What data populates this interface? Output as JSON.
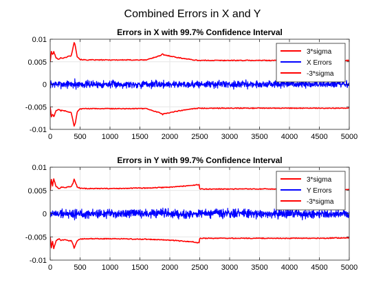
{
  "figure": {
    "title": "Combined Errors in X and Y"
  },
  "colors": {
    "sigma": "#ff0000",
    "errors": "#0000ff",
    "grid": "#e6e6e6",
    "axis": "#262626"
  },
  "chart_data": [
    {
      "type": "line",
      "title": "Errors in X with 99.7% Confidence Interval",
      "xlabel": "",
      "ylabel": "",
      "xlim": [
        0,
        5000
      ],
      "ylim": [
        -0.01,
        0.01
      ],
      "xticks": [
        "0",
        "500",
        "1000",
        "1500",
        "2000",
        "2500",
        "3000",
        "3500",
        "4000",
        "4500",
        "5000"
      ],
      "yticks": [
        "-0.01",
        "-0.005",
        "0",
        "0.005",
        "0.01"
      ],
      "grid": true,
      "legend_position": "top-right",
      "series": [
        {
          "name": "3*sigma",
          "color": "#ff0000",
          "kind": "upper",
          "x": [
            0,
            20,
            40,
            60,
            100,
            150,
            180,
            200,
            250,
            300,
            350,
            380,
            400,
            420,
            450,
            500,
            600,
            800,
            1000,
            1200,
            1400,
            1600,
            1700,
            1750,
            1800,
            1850,
            1880,
            1900,
            2000,
            2100,
            2200,
            2300,
            2400,
            2500,
            2600,
            3000,
            3500,
            4000,
            4500,
            5000
          ],
          "values": [
            0.005,
            0.0072,
            0.0066,
            0.0072,
            0.0058,
            0.0056,
            0.0059,
            0.0058,
            0.0059,
            0.0062,
            0.0063,
            0.008,
            0.0093,
            0.0086,
            0.0062,
            0.0055,
            0.0054,
            0.0054,
            0.0054,
            0.0054,
            0.0054,
            0.0054,
            0.0058,
            0.006,
            0.0062,
            0.0064,
            0.0067,
            0.0065,
            0.0063,
            0.006,
            0.0058,
            0.0056,
            0.0054,
            0.0053,
            0.0053,
            0.0053,
            0.0053,
            0.0053,
            0.0053,
            0.0053
          ]
        },
        {
          "name": "X Errors",
          "color": "#0000ff",
          "kind": "errors",
          "amplitude": 0.0012,
          "seed": 7
        },
        {
          "name": "-3*sigma",
          "color": "#ff0000",
          "kind": "lower",
          "mirror_of": 0
        }
      ]
    },
    {
      "type": "line",
      "title": "Errors in Y with 99.7% Confidence Interval",
      "xlabel": "",
      "ylabel": "",
      "xlim": [
        0,
        5000
      ],
      "ylim": [
        -0.01,
        0.01
      ],
      "xticks": [
        "0",
        "500",
        "1000",
        "1500",
        "2000",
        "2500",
        "3000",
        "3500",
        "4000",
        "4500",
        "5000"
      ],
      "yticks": [
        "-0.01",
        "-0.005",
        "0",
        "0.005",
        "0.01"
      ],
      "grid": true,
      "legend_position": "top-right",
      "series": [
        {
          "name": "3*sigma",
          "color": "#ff0000",
          "kind": "upper",
          "x": [
            0,
            20,
            40,
            60,
            100,
            150,
            180,
            200,
            250,
            300,
            350,
            380,
            400,
            420,
            450,
            500,
            600,
            800,
            1000,
            1200,
            1400,
            1600,
            1800,
            2000,
            2200,
            2400,
            2490,
            2500,
            2600,
            3000,
            3500,
            4000,
            4500,
            5000
          ],
          "values": [
            0.005,
            0.0073,
            0.006,
            0.0075,
            0.0058,
            0.0054,
            0.0057,
            0.0057,
            0.0056,
            0.0058,
            0.0058,
            0.0065,
            0.0074,
            0.0068,
            0.0058,
            0.0055,
            0.0054,
            0.0054,
            0.0054,
            0.0054,
            0.0055,
            0.0055,
            0.0056,
            0.0057,
            0.0059,
            0.0061,
            0.0063,
            0.0053,
            0.0053,
            0.0053,
            0.0053,
            0.0053,
            0.0053,
            0.0052
          ]
        },
        {
          "name": "Y Errors",
          "color": "#0000ff",
          "kind": "errors",
          "amplitude": 0.0014,
          "seed": 19
        },
        {
          "name": "-3*sigma",
          "color": "#ff0000",
          "kind": "lower",
          "mirror_of": 0
        }
      ]
    }
  ]
}
